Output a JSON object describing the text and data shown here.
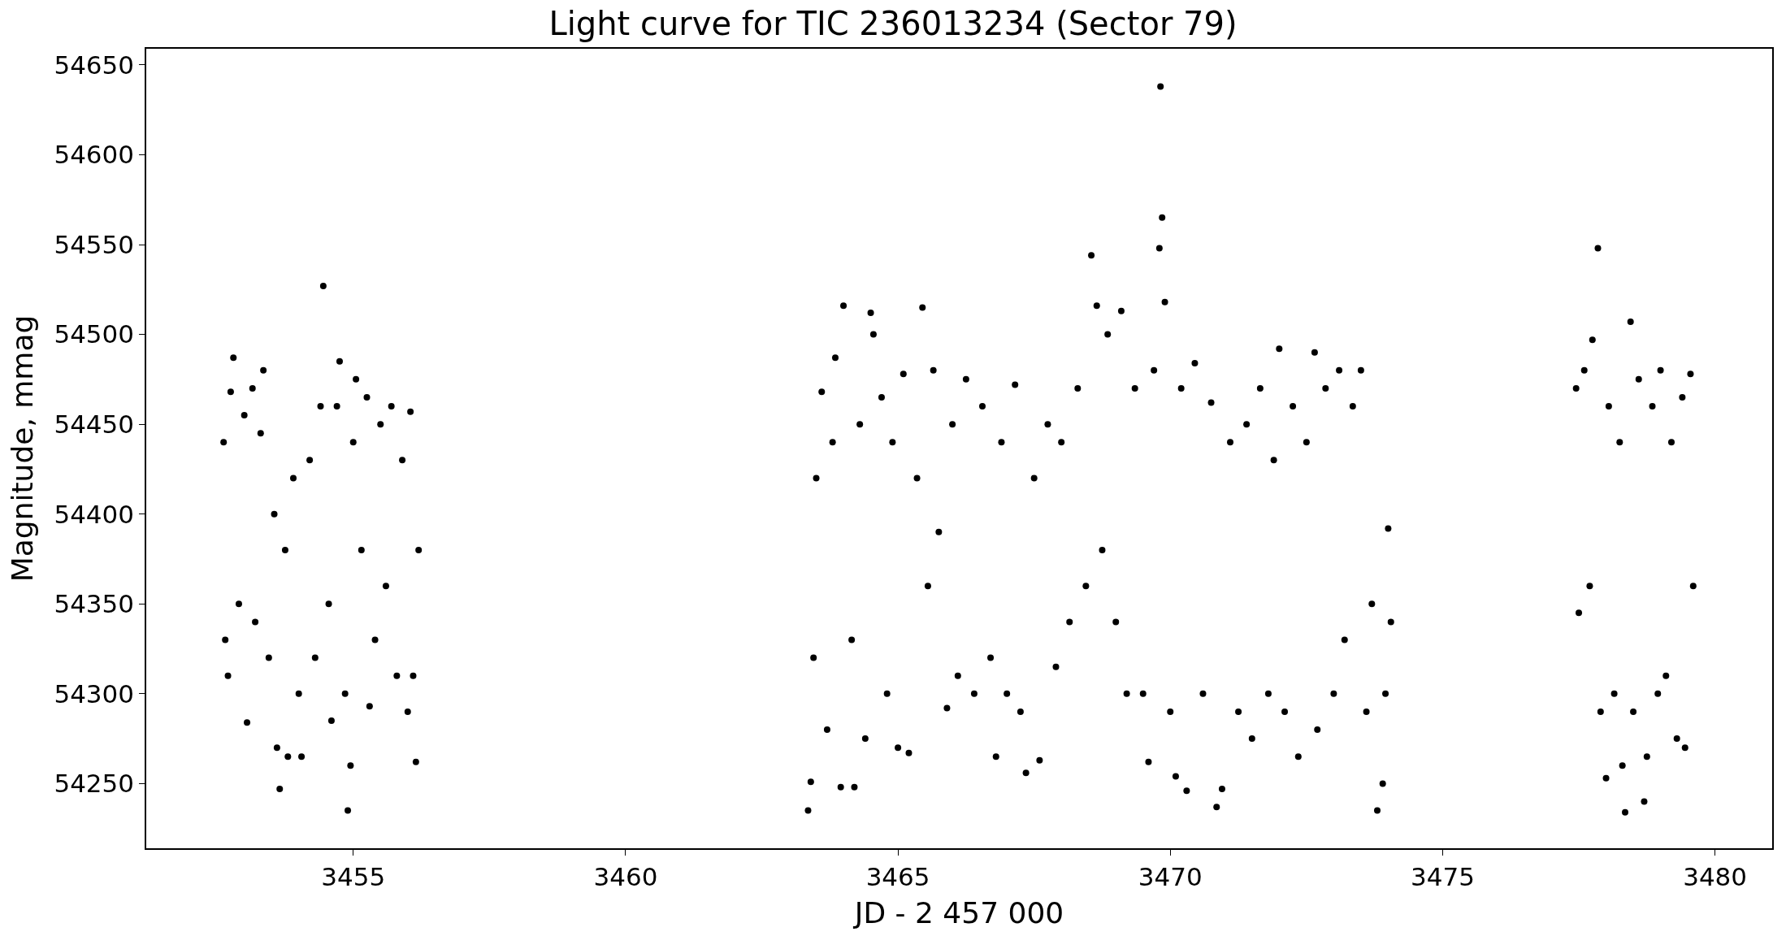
{
  "chart_data": {
    "type": "scatter",
    "title": "Light curve for TIC 236013234 (Sector 79)",
    "xlabel": "JD - 2 457 000",
    "ylabel": "Magnitude, mmag",
    "xlim": [
      3451.2,
      3481.05
    ],
    "xticks": [
      3455,
      3460,
      3465,
      3470,
      3475,
      3480
    ],
    "ylim": [
      54214,
      54659
    ],
    "yticks": [
      54250,
      54300,
      54350,
      54400,
      54450,
      54500,
      54550,
      54600,
      54650
    ],
    "marker": "circle",
    "series": [
      {
        "color": "#000000",
        "x": [
          3452.62,
          3452.65,
          3452.7,
          3452.75,
          3452.8,
          3452.9,
          3453.0,
          3453.05,
          3453.15,
          3453.2,
          3453.3,
          3453.35,
          3453.45,
          3453.55,
          3453.6,
          3453.65,
          3453.75,
          3453.8,
          3453.9,
          3454.0,
          3454.05,
          3454.2,
          3454.3,
          3454.4,
          3454.45,
          3454.55,
          3454.6,
          3454.7,
          3454.75,
          3454.85,
          3454.9,
          3454.95,
          3455.0,
          3455.05,
          3455.15,
          3455.25,
          3455.3,
          3455.4,
          3455.5,
          3455.6,
          3455.7,
          3455.8,
          3455.9,
          3456.0,
          3456.05,
          3456.1,
          3456.15,
          3456.2,
          3463.35,
          3463.4,
          3463.45,
          3463.5,
          3463.6,
          3463.7,
          3463.8,
          3463.85,
          3463.95,
          3464.0,
          3464.15,
          3464.2,
          3464.3,
          3464.4,
          3464.5,
          3464.55,
          3464.7,
          3464.8,
          3464.9,
          3465.0,
          3465.1,
          3465.2,
          3465.35,
          3465.45,
          3465.55,
          3465.65,
          3465.75,
          3465.9,
          3466.0,
          3466.1,
          3466.25,
          3466.4,
          3466.55,
          3466.7,
          3466.8,
          3466.9,
          3467.0,
          3467.15,
          3467.25,
          3467.35,
          3467.5,
          3467.6,
          3467.75,
          3467.9,
          3468.0,
          3468.15,
          3468.3,
          3468.45,
          3468.55,
          3468.65,
          3468.75,
          3468.85,
          3469.0,
          3469.1,
          3469.2,
          3469.35,
          3469.5,
          3469.6,
          3469.7,
          3469.8,
          3469.82,
          3469.85,
          3469.9,
          3470.0,
          3470.1,
          3470.2,
          3470.3,
          3470.45,
          3470.6,
          3470.75,
          3470.85,
          3470.95,
          3471.1,
          3471.25,
          3471.4,
          3471.5,
          3471.65,
          3471.8,
          3471.9,
          3472.0,
          3472.1,
          3472.25,
          3472.35,
          3472.5,
          3472.65,
          3472.7,
          3472.85,
          3473.0,
          3473.1,
          3473.2,
          3473.35,
          3473.5,
          3473.6,
          3473.7,
          3473.8,
          3473.9,
          3473.95,
          3474.0,
          3474.05,
          3477.45,
          3477.5,
          3477.6,
          3477.7,
          3477.75,
          3477.85,
          3477.9,
          3478.0,
          3478.05,
          3478.15,
          3478.25,
          3478.3,
          3478.35,
          3478.45,
          3478.5,
          3478.6,
          3478.7,
          3478.75,
          3478.85,
          3478.95,
          3479.0,
          3479.1,
          3479.2,
          3479.3,
          3479.4,
          3479.45,
          3479.55,
          3479.6
        ],
        "values": [
          54440,
          54330,
          54310,
          54468,
          54487,
          54350,
          54455,
          54284,
          54470,
          54340,
          54445,
          54480,
          54320,
          54400,
          54270,
          54247,
          54380,
          54265,
          54420,
          54300,
          54265,
          54430,
          54320,
          54460,
          54527,
          54350,
          54285,
          54460,
          54485,
          54300,
          54235,
          54260,
          54440,
          54475,
          54380,
          54465,
          54293,
          54330,
          54450,
          54360,
          54460,
          54310,
          54430,
          54290,
          54457,
          54310,
          54262,
          54380,
          54235,
          54251,
          54320,
          54420,
          54468,
          54280,
          54440,
          54487,
          54248,
          54516,
          54330,
          54248,
          54450,
          54275,
          54512,
          54500,
          54465,
          54300,
          54440,
          54270,
          54478,
          54267,
          54420,
          54515,
          54360,
          54480,
          54390,
          54292,
          54450,
          54310,
          54475,
          54300,
          54460,
          54320,
          54265,
          54440,
          54300,
          54472,
          54290,
          54256,
          54420,
          54263,
          54450,
          54315,
          54440,
          54340,
          54470,
          54360,
          54544,
          54516,
          54380,
          54500,
          54340,
          54513,
          54300,
          54470,
          54300,
          54262,
          54480,
          54548,
          54638,
          54565,
          54518,
          54290,
          54254,
          54470,
          54246,
          54484,
          54300,
          54462,
          54237,
          54247,
          54440,
          54290,
          54450,
          54275,
          54470,
          54300,
          54430,
          54492,
          54290,
          54460,
          54265,
          54440,
          54490,
          54280,
          54470,
          54300,
          54480,
          54330,
          54460,
          54480,
          54290,
          54350,
          54235,
          54250,
          54300,
          54392,
          54340,
          54470,
          54345,
          54480,
          54360,
          54497,
          54548,
          54290,
          54253,
          54460,
          54300,
          54440,
          54260,
          54234,
          54507,
          54290,
          54475,
          54240,
          54265,
          54460,
          54300,
          54480,
          54310,
          54440,
          54275,
          54465,
          54270,
          54478,
          54360
        ]
      }
    ]
  }
}
